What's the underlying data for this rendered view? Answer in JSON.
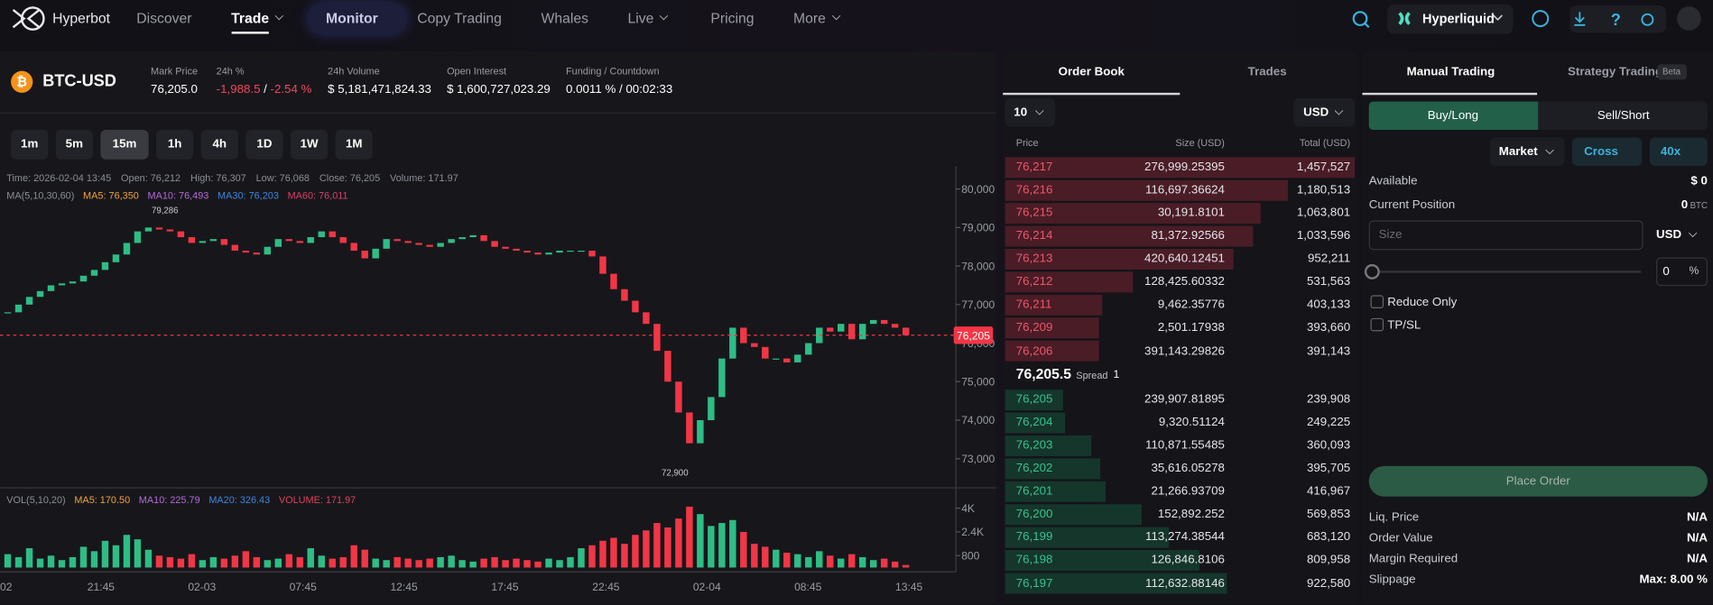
{
  "nav": {
    "brand": "Hyperbot",
    "items": [
      {
        "label": "Discover"
      },
      {
        "label": "Trade",
        "dropdown": true,
        "active": true
      },
      {
        "label": "Monitor",
        "highlight": true
      },
      {
        "label": "Copy Trading"
      },
      {
        "label": "Whales"
      },
      {
        "label": "Live",
        "dropdown": true
      },
      {
        "label": "Pricing"
      },
      {
        "label": "More",
        "dropdown": true
      }
    ],
    "exchange": "Hyperliquid"
  },
  "ticker": {
    "symbol": "BTC-USD",
    "mark_label": "Mark Price",
    "mark": "76,205.0",
    "change_label": "24h %",
    "change": "-1,988.5",
    "sep": "/",
    "change_pct": "-2.54 %",
    "volume_label": "24h Volume",
    "volume": "$ 5,181,471,824.33",
    "oi_label": "Open Interest",
    "oi": "$ 1,600,727,023.29",
    "funding_label": "Funding / Countdown",
    "funding": "0.0011 % / 00:02:33"
  },
  "timeframes": [
    "1m",
    "5m",
    "15m",
    "1h",
    "4h",
    "1D",
    "1W",
    "1M"
  ],
  "active_timeframe": "15m",
  "chart": {
    "type": "candlestick",
    "info": [
      "Time: 2026-02-04 13:45",
      "Open: 76,212",
      "High: 76,307",
      "Low: 76,068",
      "Close: 76,205",
      "Volume: 171.97"
    ],
    "ma_legend": [
      {
        "text": "MA(5,10,30,60)",
        "color": "#8b8e96"
      },
      {
        "text": "MA5: 76,350",
        "color": "#f0a23b"
      },
      {
        "text": "MA10: 76,493",
        "color": "#b46ad8"
      },
      {
        "text": "MA30: 76,203",
        "color": "#3f86e0"
      },
      {
        "text": "MA60: 76,011",
        "color": "#d8406a"
      }
    ],
    "ylim": [
      72300,
      80600
    ],
    "yticks": [
      {
        "value": 80000,
        "label": "80,000"
      },
      {
        "value": 79000,
        "label": "79,000"
      },
      {
        "value": 78000,
        "label": "78,000"
      },
      {
        "value": 77000,
        "label": "77,000"
      },
      {
        "value": 76000,
        "label": "76,000"
      },
      {
        "value": 75000,
        "label": "75,000"
      },
      {
        "value": 74000,
        "label": "74,000"
      },
      {
        "value": 73000,
        "label": "73,000"
      }
    ],
    "last_price": {
      "value": 76205,
      "label": "76,205"
    },
    "high_label": {
      "value": 79286,
      "label": "79,286"
    },
    "low_label": {
      "value": 72900,
      "label": "72,900"
    },
    "closes": [
      76800,
      77000,
      77200,
      77350,
      77500,
      77550,
      77600,
      77750,
      77900,
      78100,
      78300,
      78600,
      78900,
      79000,
      78950,
      78900,
      78750,
      78600,
      78650,
      78700,
      78550,
      78400,
      78350,
      78300,
      78500,
      78700,
      78650,
      78600,
      78750,
      78900,
      78750,
      78600,
      78400,
      78200,
      78450,
      78700,
      78650,
      78600,
      78550,
      78500,
      78600,
      78700,
      78750,
      78800,
      78650,
      78500,
      78450,
      78400,
      78350,
      78300,
      78350,
      78400,
      78400,
      78400,
      78250,
      77800,
      77400,
      77100,
      76800,
      76500,
      75800,
      75000,
      74200,
      73400,
      74000,
      74600,
      75600,
      76400,
      76000,
      75900,
      75600,
      75600,
      75500,
      75700,
      76000,
      76400,
      76300,
      76500,
      76100,
      76500,
      76600,
      76500,
      76400,
      76205
    ],
    "volumes": [
      900,
      700,
      1300,
      600,
      800,
      500,
      700,
      1400,
      1100,
      1800,
      1500,
      2200,
      1900,
      1200,
      800,
      700,
      600,
      900,
      500,
      700,
      600,
      800,
      1100,
      700,
      500,
      600,
      900,
      700,
      1300,
      800,
      600,
      700,
      1500,
      1200,
      600,
      500,
      700,
      600,
      500,
      600,
      700,
      800,
      500,
      400,
      600,
      700,
      500,
      600,
      500,
      400,
      600,
      500,
      700,
      1300,
      1500,
      1800,
      2000,
      1600,
      2200,
      2500,
      3000,
      2700,
      3300,
      4100,
      3600,
      2800,
      3000,
      3200,
      2400,
      1600,
      1400,
      1200,
      1000,
      900,
      700,
      1100,
      800,
      600,
      900,
      700,
      500,
      600,
      400,
      171.97
    ],
    "vol_legend": [
      {
        "text": "VOL(5,10,20)",
        "color": "#8b8e96"
      },
      {
        "text": "MA5: 170.50",
        "color": "#f0a23b"
      },
      {
        "text": "MA10: 225.79",
        "color": "#b46ad8"
      },
      {
        "text": "MA20: 326.43",
        "color": "#3f86e0"
      },
      {
        "text": "VOLUME: 171.97",
        "color": "#e0405a"
      }
    ],
    "vlim": [
      0,
      5000
    ],
    "vticks": [
      {
        "value": 4000,
        "label": "4K"
      },
      {
        "value": 2400,
        "label": "2.4K"
      },
      800
    ],
    "xticks": [
      "02",
      "21:45",
      "02-03",
      "07:45",
      "12:45",
      "17:45",
      "22:45",
      "02-04",
      "08:45",
      "13:45"
    ]
  },
  "order_book": {
    "tabs": [
      "Order Book",
      "Trades"
    ],
    "depth": "10",
    "currency": "USD",
    "headers": [
      "Price",
      "Size (USD)",
      "Total (USD)"
    ],
    "asks": [
      {
        "price": "76,217",
        "size": "276,999.25395",
        "total": {
          "value": 1457527,
          "label": "1,457,527"
        }
      },
      {
        "price": "76,216",
        "size": "116,697.36624",
        "total": {
          "value": 1180513,
          "label": "1,180,513"
        }
      },
      {
        "price": "76,215",
        "size": "30,191.8101",
        "total": {
          "value": 1063801,
          "label": "1,063,801"
        }
      },
      {
        "price": "76,214",
        "size": "81,372.92566",
        "total": {
          "value": 1033596,
          "label": "1,033,596"
        }
      },
      {
        "price": "76,213",
        "size": "420,640.12451",
        "total": {
          "value": 952211,
          "label": "952,211"
        }
      },
      {
        "price": "76,212",
        "size": "128,425.60332",
        "total": {
          "value": 531563,
          "label": "531,563"
        }
      },
      {
        "price": "76,211",
        "size": "9,462.35776",
        "total": {
          "value": 403133,
          "label": "403,133"
        }
      },
      {
        "price": "76,209",
        "size": "2,501.17938",
        "total": {
          "value": 393660,
          "label": "393,660"
        }
      },
      {
        "price": "76,206",
        "size": "391,143.29826",
        "total": {
          "value": 391143,
          "label": "391,143"
        }
      }
    ],
    "spread": {
      "mid": "76,205.5",
      "label": "Spread",
      "value": "1"
    },
    "bids": [
      {
        "price": "76,205",
        "size": "239,907.81895",
        "total": {
          "value": 239908,
          "label": "239,908"
        }
      },
      {
        "price": "76,204",
        "size": "9,320.51124",
        "total": {
          "value": 249225,
          "label": "249,225"
        }
      },
      {
        "price": "76,203",
        "size": "110,871.55485",
        "total": {
          "value": 360093,
          "label": "360,093"
        }
      },
      {
        "price": "76,202",
        "size": "35,616.05278",
        "total": {
          "value": 395705,
          "label": "395,705"
        }
      },
      {
        "price": "76,201",
        "size": "21,266.93709",
        "total": {
          "value": 416967,
          "label": "416,967"
        }
      },
      {
        "price": "76,200",
        "size": "152,892.252",
        "total": {
          "value": 569853,
          "label": "569,853"
        }
      },
      {
        "price": "76,199",
        "size": "113,274.38544",
        "total": {
          "value": 683120,
          "label": "683,120"
        }
      },
      {
        "price": "76,198",
        "size": "126,846.8106",
        "total": {
          "value": 809958,
          "label": "809,958"
        }
      },
      {
        "price": "76,197",
        "size": "112,632.88146",
        "total": {
          "value": 922580,
          "label": "922,580"
        }
      }
    ]
  },
  "trade": {
    "tabs": [
      "Manual Trading",
      "Strategy Trading"
    ],
    "beta": "Beta",
    "buy": "Buy/Long",
    "sell": "Sell/Short",
    "order_type": "Market",
    "margin": "Cross",
    "leverage": "40x",
    "available_label": "Available",
    "available": "$ 0",
    "position_label": "Current Position",
    "position": "0",
    "position_unit": "BTC",
    "size_placeholder": "Size",
    "size_unit": "USD",
    "percent": "0",
    "percent_unit": "%",
    "reduce_only": "Reduce Only",
    "tpsl": "TP/SL",
    "place_order": "Place Order",
    "summary": [
      {
        "label": "Liq. Price",
        "value": "N/A"
      },
      {
        "label": "Order Value",
        "value": "N/A"
      },
      {
        "label": "Margin Required",
        "value": "N/A"
      },
      {
        "label": "Slippage",
        "value": "Max: 8.00 %"
      }
    ]
  }
}
